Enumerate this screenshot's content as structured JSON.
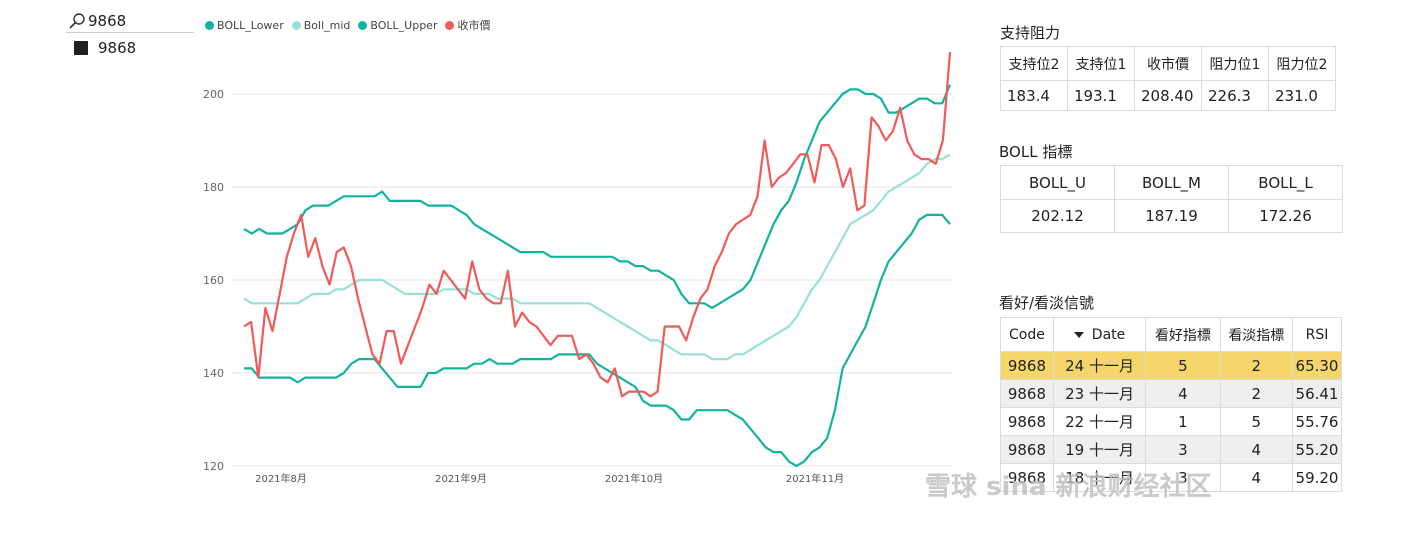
{
  "slicer": {
    "search_value": "9868",
    "item_label": "9868"
  },
  "legend": [
    {
      "name": "BOLL_Lower",
      "color": "#12b3a0"
    },
    {
      "name": "Boll_mid",
      "color": "#98e0d8"
    },
    {
      "name": "BOLL_Upper",
      "color": "#12b3a0"
    },
    {
      "name": "收市價",
      "color": "#ee5b58"
    }
  ],
  "support_resistance": {
    "title": "支持阻力",
    "headers": [
      "支持位2",
      "支持位1",
      "收市價",
      "阻力位1",
      "阻力位2"
    ],
    "values": [
      "183.4",
      "193.1",
      "208.40",
      "226.3",
      "231.0"
    ]
  },
  "boll": {
    "title": "BOLL 指標",
    "headers": [
      "BOLL_U",
      "BOLL_M",
      "BOLL_L"
    ],
    "values": [
      "202.12",
      "187.19",
      "172.26"
    ]
  },
  "signals": {
    "title": "看好/看淡信號",
    "headers": [
      "Code",
      "Date",
      "看好指標",
      "看淡指標",
      "RSI"
    ],
    "rows": [
      [
        "9868",
        "24 十一月",
        "5",
        "2",
        "65.30"
      ],
      [
        "9868",
        "23 十一月",
        "4",
        "2",
        "56.41"
      ],
      [
        "9868",
        "22 十一月",
        "1",
        "5",
        "55.76"
      ],
      [
        "9868",
        "19 十一月",
        "3",
        "4",
        "55.20"
      ],
      [
        "9868",
        "18 十一月",
        "3",
        "4",
        "59.20"
      ]
    ]
  },
  "watermark": "雪球 sina 新浪财经社区",
  "chart_data": {
    "type": "line",
    "ylim": [
      120,
      210
    ],
    "y_ticks": [
      120,
      140,
      160,
      180,
      200
    ],
    "x_tick_labels": [
      "2021年8月",
      "2021年9月",
      "2021年10月",
      "2021年11月"
    ],
    "series": [
      {
        "name": "BOLL_Lower",
        "color": "#12b3a0",
        "values": [
          141,
          141,
          139,
          139,
          139,
          139,
          139,
          138,
          139,
          139,
          139,
          139,
          139,
          140,
          142,
          143,
          143,
          143,
          141,
          139,
          137,
          137,
          137,
          137,
          140,
          140,
          141,
          141,
          141,
          141,
          142,
          142,
          143,
          142,
          142,
          142,
          143,
          143,
          143,
          143,
          143,
          144,
          144,
          144,
          144,
          144,
          142,
          141,
          140,
          139,
          138,
          137,
          134,
          133,
          133,
          133,
          132,
          130,
          130,
          132,
          132,
          132,
          132,
          132,
          131,
          130,
          128,
          126,
          124,
          123,
          123,
          121,
          120,
          121,
          123,
          124,
          126,
          132,
          141,
          144,
          147,
          150,
          155,
          160,
          164,
          166,
          168,
          170,
          173,
          174,
          174,
          174,
          172
        ]
      },
      {
        "name": "Boll_mid",
        "color": "#98e0d8",
        "values": [
          156,
          155,
          155,
          155,
          155,
          155,
          155,
          155,
          156,
          157,
          157,
          157,
          158,
          158,
          159,
          160,
          160,
          160,
          160,
          159,
          158,
          157,
          157,
          157,
          157,
          157,
          158,
          158,
          158,
          158,
          157,
          157,
          157,
          156,
          156,
          156,
          155,
          155,
          155,
          155,
          155,
          155,
          155,
          155,
          155,
          155,
          154,
          153,
          152,
          151,
          150,
          149,
          148,
          147,
          147,
          146,
          145,
          144,
          144,
          144,
          144,
          143,
          143,
          143,
          144,
          144,
          145,
          146,
          147,
          148,
          149,
          150,
          152,
          155,
          158,
          160,
          163,
          166,
          169,
          172,
          173,
          174,
          175,
          177,
          179,
          180,
          181,
          182,
          183,
          185,
          186,
          186,
          187
        ]
      },
      {
        "name": "BOLL_Upper",
        "color": "#12b3a0",
        "values": [
          171,
          170,
          171,
          170,
          170,
          170,
          171,
          172,
          175,
          176,
          176,
          176,
          177,
          178,
          178,
          178,
          178,
          178,
          179,
          177,
          177,
          177,
          177,
          177,
          176,
          176,
          176,
          176,
          175,
          174,
          172,
          171,
          170,
          169,
          168,
          167,
          166,
          166,
          166,
          166,
          165,
          165,
          165,
          165,
          165,
          165,
          165,
          165,
          165,
          164,
          164,
          163,
          163,
          162,
          162,
          161,
          160,
          157,
          155,
          155,
          155,
          154,
          155,
          156,
          157,
          158,
          160,
          164,
          168,
          172,
          175,
          177,
          181,
          186,
          190,
          194,
          196,
          198,
          200,
          201,
          201,
          200,
          200,
          199,
          196,
          196,
          197,
          198,
          199,
          199,
          198,
          198,
          202
        ]
      },
      {
        "name": "收市價",
        "color": "#ee5b58",
        "values": [
          150,
          151,
          139,
          154,
          149,
          157,
          165,
          170,
          174,
          165,
          169,
          163,
          159,
          166,
          167,
          163,
          156,
          150,
          144,
          142,
          149,
          149,
          142,
          146,
          150,
          154,
          159,
          157,
          162,
          160,
          158,
          156,
          164,
          158,
          156,
          155,
          155,
          162,
          150,
          153,
          151,
          150,
          148,
          146,
          148,
          148,
          148,
          143,
          144,
          142,
          139,
          138,
          141,
          135,
          136,
          136,
          136,
          135,
          136,
          150,
          150,
          150,
          147,
          152,
          156,
          158,
          163,
          166,
          170,
          172,
          173,
          174,
          178,
          190,
          180,
          182,
          183,
          185,
          187,
          187,
          181,
          189,
          189,
          186,
          180,
          184,
          175,
          176,
          195,
          193,
          190,
          192,
          197,
          190,
          187,
          186,
          186,
          185,
          190,
          209
        ]
      }
    ]
  }
}
